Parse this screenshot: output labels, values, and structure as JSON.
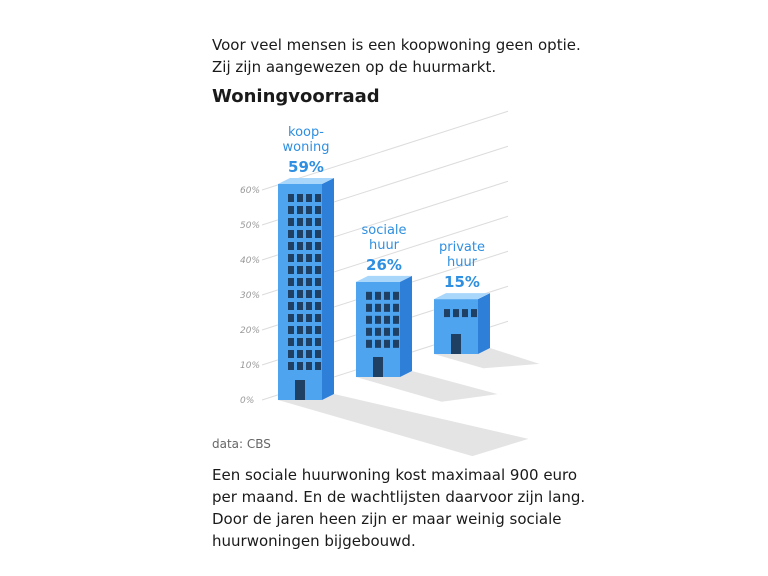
{
  "intro": "Voor veel mensen is een koopwoning geen optie. Zij zijn aangewezen op de huurmarkt.",
  "chart_data": {
    "type": "bar",
    "title": "Woningvoorraad",
    "categories": [
      "koop-\nwoning",
      "sociale\nhuur",
      "private\nhuur"
    ],
    "values": [
      59,
      26,
      15
    ],
    "value_labels": [
      "59%",
      "26%",
      "15%"
    ],
    "yticks": [
      "0%",
      "10%",
      "20%",
      "30%",
      "40%",
      "50%",
      "60%"
    ],
    "ylim": [
      0,
      60
    ],
    "colors": {
      "front": "#4ea4ef",
      "side": "#2e7fd8",
      "top": "#a9d6fb",
      "window": "#1f3f63",
      "shadow": "#e4e4e4"
    }
  },
  "source": "data: CBS",
  "outro": "Een sociale huurwoning kost maximaal 900 euro per maand. En de wachtlijsten daarvoor zijn lang. Door de jaren heen zijn er maar weinig sociale huurwoningen bijgebouwd."
}
